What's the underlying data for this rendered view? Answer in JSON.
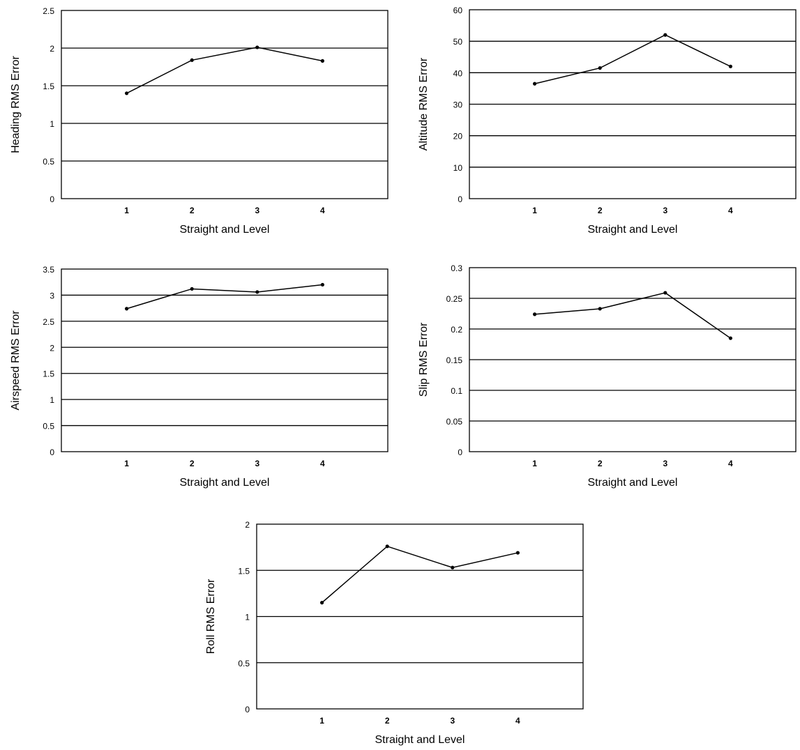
{
  "chart_data": [
    {
      "type": "line",
      "xlabel": "Straight and Level",
      "ylabel": "Heading RMS Error",
      "x": [
        1,
        2,
        3,
        4
      ],
      "x_tick_labels": [
        "1",
        "2",
        "3",
        "4"
      ],
      "ylim": [
        0,
        2.5
      ],
      "y_ticks": [
        0,
        0.5,
        1,
        1.5,
        2,
        2.5
      ],
      "y_tick_labels": [
        "0",
        "0.5",
        "1",
        "1.5",
        "2",
        "2.5"
      ],
      "grid": true,
      "series": [
        {
          "values": [
            1.4,
            1.84,
            2.01,
            1.83
          ]
        }
      ]
    },
    {
      "type": "line",
      "xlabel": "Straight and Level",
      "ylabel": "Altitude RMS Error",
      "x": [
        1,
        2,
        3,
        4
      ],
      "x_tick_labels": [
        "1",
        "2",
        "3",
        "4"
      ],
      "ylim": [
        0,
        60
      ],
      "y_ticks": [
        0,
        10,
        20,
        30,
        40,
        50,
        60
      ],
      "y_tick_labels": [
        "0",
        "10",
        "20",
        "30",
        "40",
        "50",
        "60"
      ],
      "grid": true,
      "series": [
        {
          "values": [
            36.5,
            41.5,
            52,
            42
          ]
        }
      ]
    },
    {
      "type": "line",
      "xlabel": "Straight and Level",
      "ylabel": "Airspeed RMS Error",
      "x": [
        1,
        2,
        3,
        4
      ],
      "x_tick_labels": [
        "1",
        "2",
        "3",
        "4"
      ],
      "ylim": [
        0,
        3.5
      ],
      "y_ticks": [
        0,
        0.5,
        1,
        1.5,
        2,
        2.5,
        3,
        3.5
      ],
      "y_tick_labels": [
        "0",
        "0.5",
        "1",
        "1.5",
        "2",
        "2.5",
        "3",
        "3.5"
      ],
      "grid": true,
      "series": [
        {
          "values": [
            2.74,
            3.12,
            3.06,
            3.2
          ]
        }
      ]
    },
    {
      "type": "line",
      "xlabel": "Straight and Level",
      "ylabel": "Slip RMS Error",
      "x": [
        1,
        2,
        3,
        4
      ],
      "x_tick_labels": [
        "1",
        "2",
        "3",
        "4"
      ],
      "ylim": [
        0,
        0.3
      ],
      "y_ticks": [
        0,
        0.05,
        0.1,
        0.15,
        0.2,
        0.25,
        0.3
      ],
      "y_tick_labels": [
        "0",
        "0.05",
        "0.1",
        "0.15",
        "0.2",
        "0.25",
        "0.3"
      ],
      "grid": true,
      "series": [
        {
          "values": [
            0.224,
            0.233,
            0.259,
            0.185
          ]
        }
      ]
    },
    {
      "type": "line",
      "xlabel": "Straight and Level",
      "ylabel": "Roll RMS Error",
      "x": [
        1,
        2,
        3,
        4
      ],
      "x_tick_labels": [
        "1",
        "2",
        "3",
        "4"
      ],
      "ylim": [
        0,
        2
      ],
      "y_ticks": [
        0,
        0.5,
        1,
        1.5,
        2
      ],
      "y_tick_labels": [
        "0",
        "0.5",
        "1",
        "1.5",
        "2"
      ],
      "grid": true,
      "series": [
        {
          "values": [
            1.15,
            1.76,
            1.53,
            1.69
          ]
        }
      ]
    }
  ]
}
